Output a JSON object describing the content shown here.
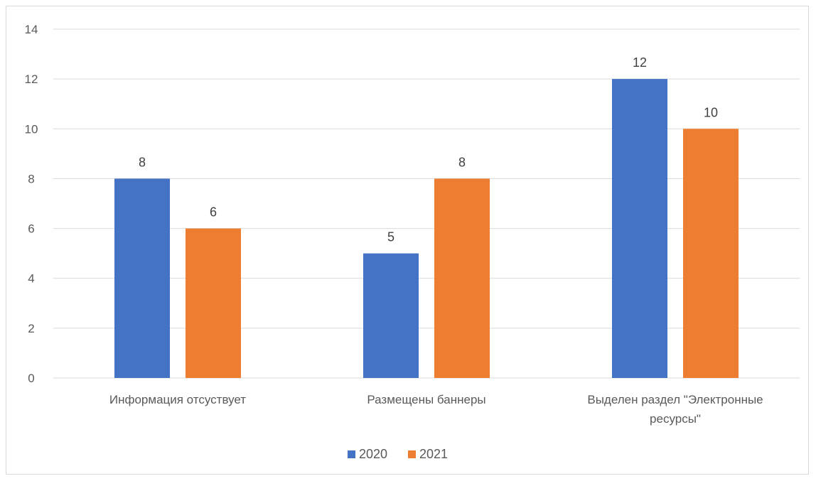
{
  "chart_data": {
    "type": "bar",
    "categories": [
      [
        "Информация отсуствует"
      ],
      [
        "Размещены баннеры"
      ],
      [
        "Выделен раздел \"Электронные",
        "ресурсы\""
      ]
    ],
    "series": [
      {
        "name": "2020",
        "color": "#4472C4",
        "values": [
          8,
          5,
          12
        ]
      },
      {
        "name": "2021",
        "color": "#ED7D31",
        "values": [
          6,
          8,
          10
        ]
      }
    ],
    "ylim": [
      0,
      14
    ],
    "yticks": [
      0,
      2,
      4,
      6,
      8,
      10,
      12,
      14
    ],
    "grid": true,
    "data_labels": true,
    "legend_position": "bottom",
    "title": "",
    "xlabel": "",
    "ylabel": ""
  }
}
